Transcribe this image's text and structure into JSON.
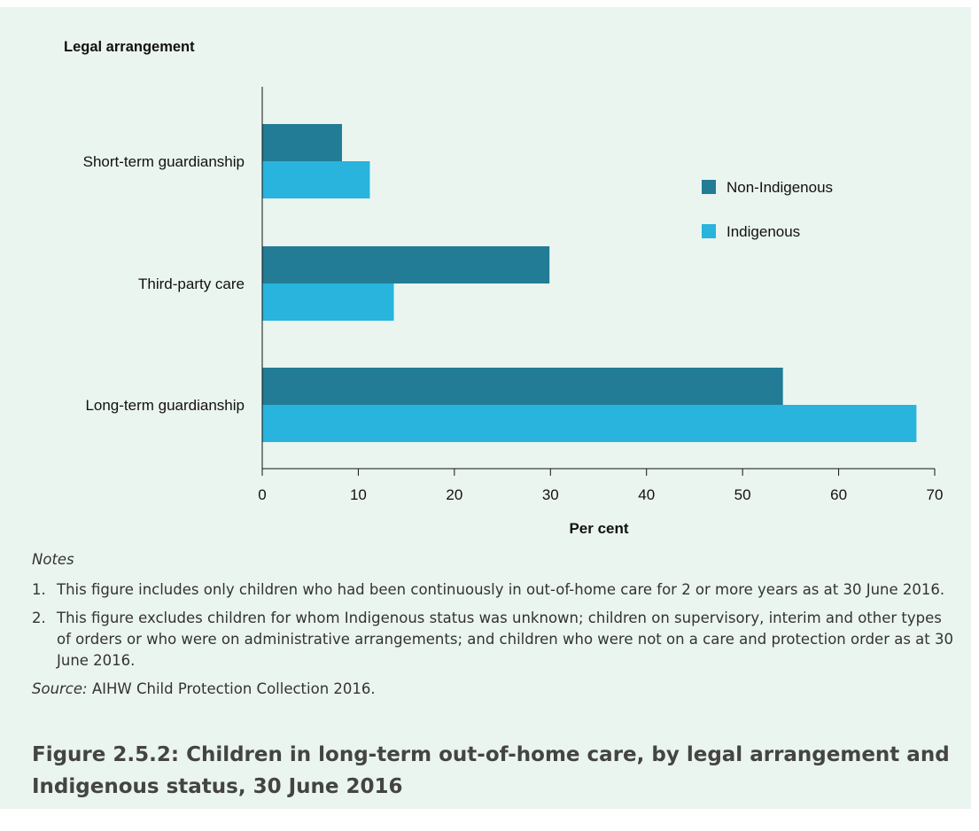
{
  "chart_data": {
    "type": "bar",
    "orientation": "horizontal",
    "categories": [
      "Short-term guardianship",
      "Third-party care",
      "Long-term guardianship"
    ],
    "series": [
      {
        "name": "Non-Indigenous",
        "color": "#227c96",
        "values": [
          8.3,
          29.9,
          54.2
        ]
      },
      {
        "name": "Indigenous",
        "color": "#28b4dd",
        "values": [
          11.2,
          13.7,
          68.1
        ]
      }
    ],
    "title": "Legal arrangement",
    "xlabel": "Per cent",
    "xlim": [
      0,
      70
    ],
    "xticks": [
      0,
      10,
      20,
      30,
      40,
      50,
      60,
      70
    ],
    "grid": false,
    "legend_position": "right"
  },
  "notes": {
    "heading": "Notes",
    "items": [
      {
        "num": "1.",
        "text": "This figure includes only children who had been continuously in out-of-home care for 2 or more years as at 30 June 2016."
      },
      {
        "num": "2.",
        "text": "This figure excludes children for whom Indigenous status was unknown; children on supervisory, interim and other types of orders or who were on administrative arrangements; and children who were not on a care and protection order as at 30 June 2016."
      }
    ],
    "source_label": "Source:",
    "source_text": " AIHW Child Protection Collection 2016."
  },
  "caption": "Figure 2.5.2: Children in long-term out-of-home care, by legal arrangement and Indigenous status, 30 June 2016"
}
